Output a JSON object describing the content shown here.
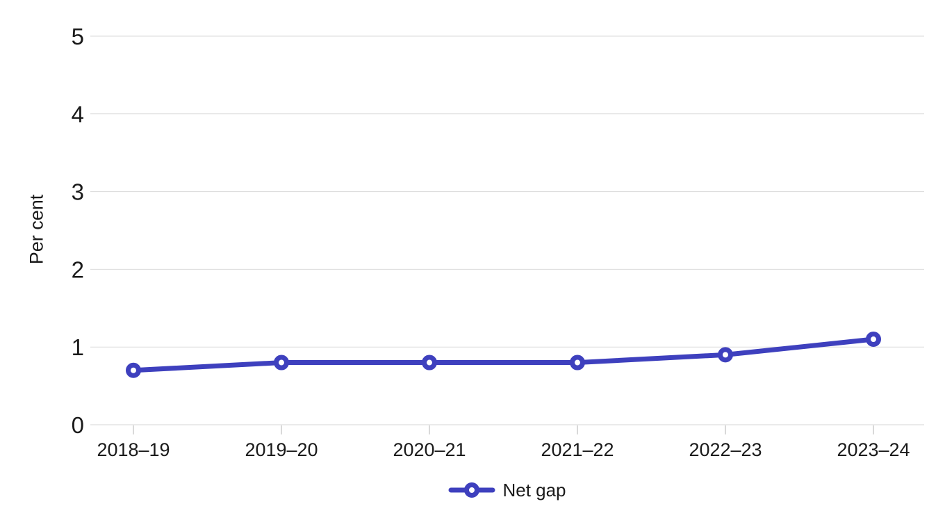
{
  "chart": {
    "legend": {
      "items": [
        {
          "label": "Net gap"
        }
      ]
    }
  },
  "chart_data": {
    "type": "line",
    "categories": [
      "2018–19",
      "2019–20",
      "2020–21",
      "2021–22",
      "2022–23",
      "2023–24"
    ],
    "series": [
      {
        "name": "Net gap",
        "values": [
          0.7,
          0.8,
          0.8,
          0.8,
          0.9,
          1.1
        ]
      }
    ],
    "title": "",
    "xlabel": "",
    "ylabel": "Per cent",
    "ylim": [
      0,
      5
    ],
    "yticks": [
      0,
      1,
      2,
      3,
      4,
      5
    ],
    "grid": true,
    "legend_position": "bottom",
    "line_color": "#3e40be",
    "marker": "open-circle"
  }
}
